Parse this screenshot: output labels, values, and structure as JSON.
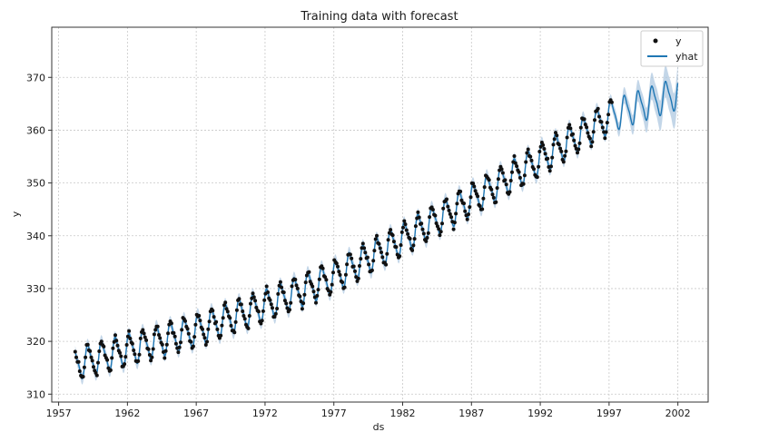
{
  "chart_data": {
    "type": "line",
    "title": "Training data with forecast",
    "xlabel": "ds",
    "ylabel": "y",
    "xlim": [
      1956.5,
      2004.2
    ],
    "ylim": [
      308.5,
      379.5
    ],
    "xticks": [
      1957,
      1962,
      1967,
      1972,
      1977,
      1982,
      1987,
      1992,
      1997,
      2002
    ],
    "xtick_labels": [
      "1957",
      "1962",
      "1967",
      "1972",
      "1977",
      "1982",
      "1987",
      "1992",
      "1997",
      "2002"
    ],
    "yticks": [
      310,
      320,
      330,
      340,
      350,
      360,
      370
    ],
    "ytick_labels": [
      "310",
      "320",
      "330",
      "340",
      "350",
      "360",
      "370"
    ],
    "grid": true,
    "legend_position": "top-right",
    "legend": [
      {
        "label": "y",
        "marker": "point"
      },
      {
        "label": "yhat",
        "marker": "line"
      }
    ],
    "series": [
      {
        "name": "y",
        "kind": "observed points",
        "color": "#111111",
        "x_range": [
          1958.2,
          1997.2
        ],
        "trend": [
          [
            1958.2,
            315.7
          ],
          [
            1962,
            318.4
          ],
          [
            1967,
            322.1
          ],
          [
            1972,
            326.8
          ],
          [
            1977,
            332.2
          ],
          [
            1982,
            339.4
          ],
          [
            1987,
            346.8
          ],
          [
            1992,
            354.5
          ],
          [
            1997.2,
            362.8
          ]
        ],
        "seasonal_amplitude": 2.8
      },
      {
        "name": "yhat",
        "kind": "fitted and forecast line",
        "color": "#1f77b4",
        "x_range": [
          1958.2,
          2002.0
        ],
        "trend": [
          [
            1958.2,
            315.7
          ],
          [
            1962,
            318.4
          ],
          [
            1967,
            322.1
          ],
          [
            1972,
            326.8
          ],
          [
            1977,
            332.2
          ],
          [
            1982,
            339.4
          ],
          [
            1987,
            346.8
          ],
          [
            1992,
            354.5
          ],
          [
            1997.2,
            362.8
          ],
          [
            2002.0,
            367.0
          ]
        ],
        "seasonal_amplitude": 2.8
      },
      {
        "name": "uncertainty interval",
        "kind": "band",
        "color": "#a9c4de",
        "half_width_in_sample": 1.1,
        "half_width_at_end": 3.5
      }
    ]
  },
  "colors": {
    "point": "#111111",
    "line": "#1f77b4",
    "band": "#a9c4de",
    "grid": "#c8c8c8",
    "axis": "#333333"
  }
}
